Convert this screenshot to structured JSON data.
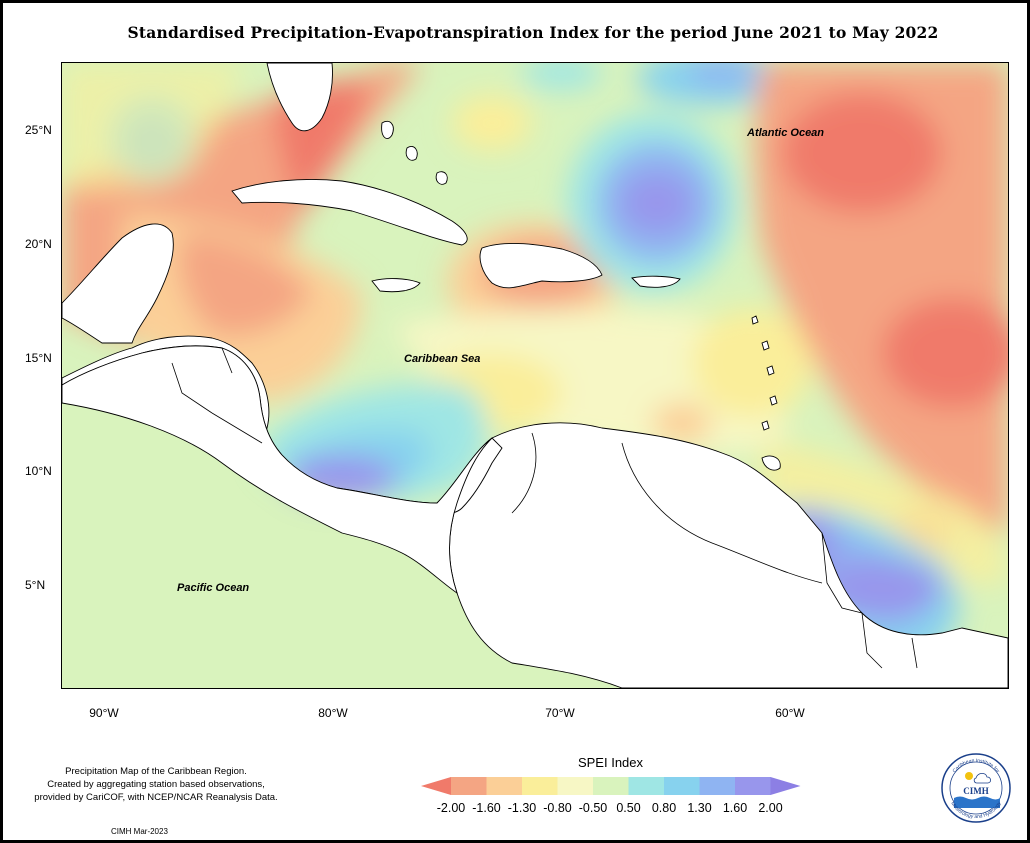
{
  "title": "Standardised Precipitation-Evapotranspiration Index for the period June 2021 to May 2022",
  "map": {
    "lat_labels": [
      "25°N",
      "20°N",
      "15°N",
      "10°N",
      "5°N"
    ],
    "lon_labels": [
      "90°W",
      "80°W",
      "70°W",
      "60°W"
    ],
    "region_labels": {
      "atlantic": "Atlantic Ocean",
      "caribbean": "Caribbean Sea",
      "pacific": "Pacific Ocean"
    }
  },
  "legend": {
    "title": "SPEI Index",
    "labels": [
      "-2.00",
      "-1.60",
      "-1.30",
      "-0.80",
      "-0.50",
      "0.50",
      "0.80",
      "1.30",
      "1.60",
      "2.00"
    ],
    "colors": [
      "#f07a6a",
      "#f4a583",
      "#fbcf97",
      "#faee9a",
      "#f7f7c5",
      "#d9f3bd",
      "#9fe6e4",
      "#87d2ee",
      "#8fb4f2",
      "#9896ec",
      "#8c7fe4"
    ]
  },
  "credit": {
    "line1": "Precipitation Map of the Caribbean Region.",
    "line2": "Created by aggregating station based observations,",
    "line3": "provided by CariCOF, with NCEP/NCAR Reanalysis Data.",
    "stamp": "CIMH Mar-2023"
  },
  "logo": {
    "text": "CIMH",
    "arc_top": "Caribbean Institute for",
    "arc_bottom": "Meteorology and Hydrology"
  }
}
